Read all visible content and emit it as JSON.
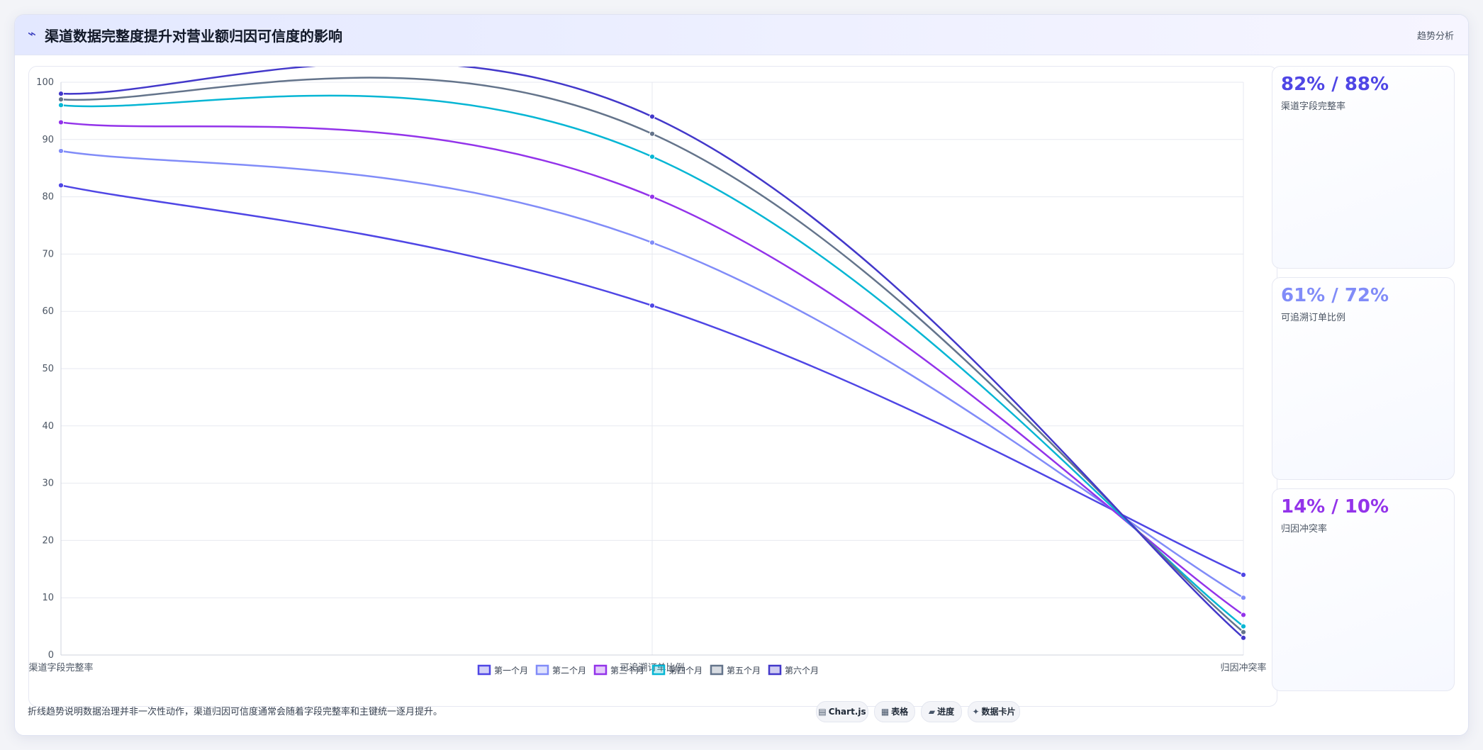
{
  "header": {
    "icon": "chart-line-icon",
    "title": "渠道数据完整度提升对营业额归因可信度的影响",
    "tag": "趋势分析"
  },
  "chart_data": {
    "type": "line",
    "categories": [
      "渠道字段完整率",
      "可追溯订单比例",
      "归因冲突率"
    ],
    "ylim": [
      0,
      100
    ],
    "yticks": [
      0,
      10,
      20,
      30,
      40,
      50,
      60,
      70,
      80,
      90,
      100
    ],
    "grid": true,
    "legend": "bottom",
    "curve": "smooth",
    "series": [
      {
        "name": "第一个月",
        "values": [
          82,
          61,
          14
        ],
        "color": "#4f46e5"
      },
      {
        "name": "第二个月",
        "values": [
          88,
          72,
          10
        ],
        "color": "#818cf8"
      },
      {
        "name": "第三个月",
        "values": [
          93,
          80,
          7
        ],
        "color": "#9333ea"
      },
      {
        "name": "第四个月",
        "values": [
          96,
          87,
          5
        ],
        "color": "#06b6d4"
      },
      {
        "name": "第五个月",
        "values": [
          97,
          91,
          4
        ],
        "color": "#64748b"
      },
      {
        "name": "第六个月",
        "values": [
          98,
          94,
          3
        ],
        "color": "#4338ca"
      }
    ]
  },
  "metrics": [
    {
      "value": "82% / 88%",
      "label": "渠道字段完整率",
      "color": "#4f46e5"
    },
    {
      "value": "61% / 72%",
      "label": "可追溯订单比例",
      "color": "#818cf8"
    },
    {
      "value": "14% / 10%",
      "label": "归因冲突率",
      "color": "#9333ea"
    }
  ],
  "footer": {
    "note": "折线趋势说明数据治理并非一次性动作，渠道归因可信度通常会随着字段完整率和主键统一逐月提升。",
    "badges": [
      {
        "icon": "chart-icon",
        "glyph": "▤",
        "label": "Chart.js"
      },
      {
        "icon": "table-icon",
        "glyph": "▦",
        "label": "表格"
      },
      {
        "icon": "progress-icon",
        "glyph": "▰",
        "label": "进度"
      },
      {
        "icon": "card-icon",
        "glyph": "✦",
        "label": "数据卡片"
      }
    ]
  }
}
